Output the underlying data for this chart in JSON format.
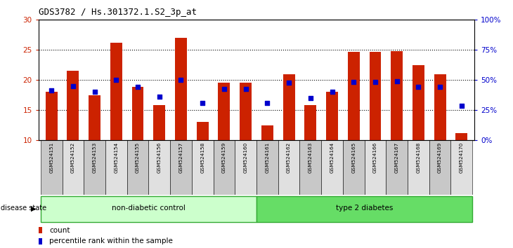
{
  "title": "GDS3782 / Hs.301372.1.S2_3p_at",
  "samples": [
    "GSM524151",
    "GSM524152",
    "GSM524153",
    "GSM524154",
    "GSM524155",
    "GSM524156",
    "GSM524157",
    "GSM524158",
    "GSM524159",
    "GSM524160",
    "GSM524161",
    "GSM524162",
    "GSM524163",
    "GSM524164",
    "GSM524165",
    "GSM524166",
    "GSM524167",
    "GSM524168",
    "GSM524169",
    "GSM524170"
  ],
  "counts": [
    18.0,
    21.5,
    17.5,
    26.2,
    18.8,
    15.8,
    27.0,
    13.0,
    19.5,
    19.5,
    12.5,
    21.0,
    15.8,
    18.0,
    24.7,
    24.7,
    24.8,
    22.5,
    21.0,
    11.2
  ],
  "blue_y_left": [
    18.3,
    19.0,
    18.0,
    20.0,
    18.8,
    17.2,
    20.0,
    16.2,
    18.5,
    18.5,
    16.2,
    19.5,
    17.0,
    18.0,
    19.7,
    19.7,
    19.8,
    18.8,
    18.8,
    15.7
  ],
  "ylim_left": [
    10,
    30
  ],
  "ylim_right": [
    0,
    100
  ],
  "yticks_left": [
    10,
    15,
    20,
    25,
    30
  ],
  "yticks_right": [
    0,
    25,
    50,
    75,
    100
  ],
  "ytick_labels_right": [
    "0%",
    "25%",
    "50%",
    "75%",
    "100%"
  ],
  "bar_color": "#cc2200",
  "square_color": "#0000cc",
  "group1_label": "non-diabetic control",
  "group2_label": "type 2 diabetes",
  "group1_color": "#ccffcc",
  "group2_color": "#66dd66",
  "group1_border": "#33aa33",
  "group2_border": "#33aa33",
  "group1_n": 10,
  "group2_n": 10,
  "disease_state_label": "disease state",
  "legend_count_label": "count",
  "legend_pct_label": "percentile rank within the sample",
  "background_color": "#ffffff",
  "axis_label_color_left": "#cc2200",
  "axis_label_color_right": "#0000cc",
  "cell_color_odd": "#c8c8c8",
  "cell_color_even": "#e0e0e0"
}
